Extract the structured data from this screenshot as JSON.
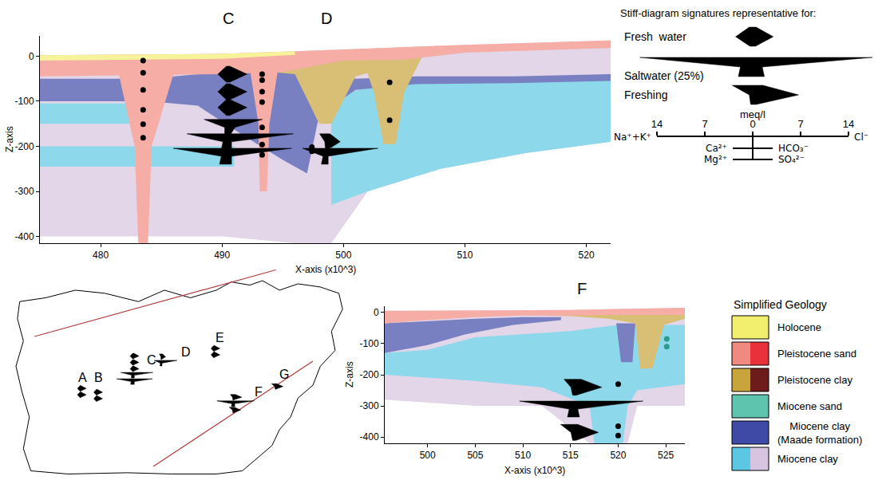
{
  "chart_data": [
    {
      "type": "cross_section",
      "xlabel": "X-axis (x10^3)",
      "ylabel": "Z-axis",
      "xlim": [
        475,
        522
      ],
      "xticks": [
        480,
        490,
        500,
        510,
        520
      ],
      "ylim": [
        -415,
        45
      ],
      "yticks": [
        -400,
        -300,
        -200,
        -100,
        0
      ],
      "labels": [
        {
          "text": "C",
          "x": 490.5
        },
        {
          "text": "D",
          "x": 498.6
        }
      ],
      "layers": [
        {
          "color": "#d8c4e0",
          "x": [
            475,
            490,
            497,
            500,
            510,
            522,
            522,
            515,
            508,
            502,
            499,
            496,
            490,
            475
          ],
          "z": [
            2,
            5,
            12,
            15,
            25,
            35,
            -190,
            -215,
            -250,
            -300,
            -415,
            -415,
            -400,
            -400
          ]
        },
        {
          "color": "#5cc7e3",
          "x": [
            475,
            484,
            484,
            475
          ],
          "z": [
            -105,
            -105,
            -150,
            -150
          ]
        },
        {
          "color": "#5cc7e3",
          "x": [
            475,
            491,
            491,
            475
          ],
          "z": [
            -200,
            -200,
            -245,
            -245
          ]
        },
        {
          "color": "#5cc7e3",
          "x": [
            499,
            502,
            506,
            512,
            518,
            522,
            522,
            515,
            508,
            502,
            499
          ],
          "z": [
            -90,
            -70,
            -55,
            -60,
            -50,
            -45,
            -190,
            -215,
            -250,
            -300,
            -330
          ]
        },
        {
          "color": "#3f4aa6",
          "x": [
            475,
            484,
            488,
            492,
            495,
            498,
            501,
            506,
            514,
            522,
            522,
            514,
            506,
            501,
            498,
            497,
            495,
            492,
            488,
            484,
            475
          ],
          "z": [
            -50,
            -50,
            -40,
            -35,
            -35,
            -45,
            -50,
            -45,
            -45,
            -40,
            -55,
            -60,
            -62,
            -75,
            -130,
            -260,
            -230,
            -180,
            -110,
            -100,
            -100
          ]
        },
        {
          "color": "#c9a43a",
          "x": [
            494,
            497,
            500,
            503,
            503,
            501,
            499,
            498,
            496,
            494
          ],
          "z": [
            -5,
            8,
            10,
            5,
            -30,
            -45,
            -150,
            -150,
            -40,
            -35
          ]
        },
        {
          "color": "#c9a43a",
          "x": [
            501.5,
            506.5,
            506.5,
            505,
            504.3,
            503.3,
            502.5,
            501.5
          ],
          "z": [
            16,
            21,
            0,
            -80,
            -195,
            -195,
            -80,
            0
          ]
        },
        {
          "color": "#f08a80",
          "x": [
            475,
            490,
            497,
            500,
            510,
            522,
            522,
            510,
            505,
            500,
            495,
            490,
            475
          ],
          "z": [
            2,
            5,
            12,
            15,
            25,
            35,
            18,
            8,
            -8,
            -10,
            -35,
            -40,
            -45
          ]
        },
        {
          "color": "#f08a80",
          "x": [
            481.5,
            482.8,
            483.1,
            483.9,
            484.2,
            486
          ],
          "z": [
            -40,
            -200,
            -415,
            -415,
            -200,
            -40
          ]
        },
        {
          "color": "#f08a80",
          "x": [
            492.3,
            493,
            493.1,
            493.7,
            493.9,
            494.6
          ],
          "z": [
            -30,
            -150,
            -300,
            -300,
            -150,
            -30
          ]
        },
        {
          "color": "#f2ee6e",
          "x": [
            475,
            490,
            496,
            496,
            490,
            475
          ],
          "z": [
            2,
            5,
            11,
            3,
            -6,
            -10
          ]
        }
      ],
      "screens": [
        {
          "color": "#000000",
          "x": [
            483.5,
            483.5,
            483.5,
            483.5,
            483.5,
            483.5,
            493.3,
            493.3,
            493.3,
            493.3,
            493.3,
            493.3,
            493.3,
            497.4,
            497.4,
            503.8,
            503.8
          ],
          "z": [
            -10,
            -37,
            -75,
            -119,
            -151,
            -181,
            -40,
            -53,
            -79,
            -102,
            -158,
            -196,
            -219,
            -202,
            -211,
            -58,
            -142
          ]
        }
      ],
      "stiff_diagrams": [
        {
          "x": 490.5,
          "z": -40,
          "cations": [
            0.5,
            3,
            0.5
          ],
          "anions": [
            0.5,
            5.5,
            0.5
          ]
        },
        {
          "x": 490.5,
          "z": -79,
          "cations": [
            0.5,
            3,
            0.5
          ],
          "anions": [
            0.5,
            5.5,
            0.5
          ]
        },
        {
          "x": 490.5,
          "z": -114,
          "cations": [
            0.5,
            3,
            0.5
          ],
          "anions": [
            0.5,
            5.5,
            0.5
          ]
        },
        {
          "x": 490.5,
          "z": -158,
          "cations": [
            7,
            1,
            1
          ],
          "anions": [
            10,
            2,
            0.5
          ]
        },
        {
          "x": 490.5,
          "z": -190,
          "cations": [
            12,
            1.5,
            2
          ],
          "anions": [
            19,
            1,
            1
          ]
        },
        {
          "x": 490.5,
          "z": -222,
          "cations": [
            16,
            2,
            2.5
          ],
          "anions": [
            18.5,
            1,
            1
          ]
        },
        {
          "x": 498.6,
          "z": -190,
          "cations": [
            2,
            0.5,
            0.3
          ],
          "anions": [
            1,
            4,
            0.3
          ]
        },
        {
          "x": 498.6,
          "z": -222,
          "cations": [
            7,
            1,
            1.5
          ],
          "anions": [
            15,
            0.5,
            0.5
          ]
        }
      ]
    },
    {
      "type": "cross_section",
      "xlabel": "X-axis (x10^3)",
      "ylabel": "Z-axis",
      "xlim": [
        495.5,
        527
      ],
      "xticks": [
        500,
        505,
        510,
        515,
        520,
        525
      ],
      "ylim": [
        -420,
        20
      ],
      "yticks": [
        -400,
        -300,
        -200,
        -100,
        0
      ],
      "labels": [
        {
          "text": "F",
          "x": 516.2
        }
      ],
      "layers": [
        {
          "color": "#d8c4e0",
          "x": [
            495.5,
            505,
            515,
            527,
            527,
            522,
            521,
            517,
            512,
            505,
            495.5
          ],
          "z": [
            5,
            6,
            8,
            15,
            -300,
            -300,
            -420,
            -420,
            -300,
            -300,
            -280
          ]
        },
        {
          "color": "#5cc7e3",
          "x": [
            495.5,
            500,
            505,
            510,
            515,
            520,
            527,
            527,
            522,
            521,
            520.5,
            517.5,
            517,
            512,
            505,
            495.5
          ],
          "z": [
            -130,
            -120,
            -80,
            -70,
            -60,
            -40,
            -40,
            -230,
            -250,
            -300,
            -420,
            -420,
            -300,
            -240,
            -220,
            -200
          ]
        },
        {
          "color": "#3f4aa6",
          "x": [
            495.5,
            500,
            505,
            510,
            514,
            514,
            509,
            504,
            500,
            495.5
          ],
          "z": [
            -35,
            -28,
            -20,
            -15,
            -15,
            -25,
            -40,
            -70,
            -105,
            -130
          ]
        },
        {
          "color": "#3f4aa6",
          "x": [
            519.8,
            521.8,
            521.5,
            520.3
          ],
          "z": [
            -35,
            -35,
            -160,
            -160
          ]
        },
        {
          "color": "#c9a43a",
          "x": [
            511,
            515,
            519,
            521.8,
            522.3,
            523.6,
            524.8,
            527,
            527,
            516,
            511
          ],
          "z": [
            -10,
            -12,
            -20,
            -35,
            -180,
            -180,
            -40,
            -20,
            -8,
            -8,
            -10
          ]
        },
        {
          "color": "#f08a80",
          "x": [
            495.5,
            505,
            515,
            527,
            527,
            520,
            515,
            510,
            505,
            500,
            495.5
          ],
          "z": [
            5,
            6,
            8,
            15,
            -8,
            -8,
            -10,
            -10,
            -15,
            -25,
            -35
          ]
        }
      ],
      "screens": [
        {
          "color": "#000000",
          "x": [
            520,
            520,
            520
          ],
          "z": [
            -230,
            -365,
            -395
          ]
        },
        {
          "color": "#2a9d8f",
          "x": [
            525.1,
            525.1
          ],
          "z": [
            -85,
            -110
          ]
        }
      ],
      "stiff_diagrams": [
        {
          "x": 515.4,
          "z": -240,
          "cations": [
            3,
            1,
            0.5
          ],
          "anions": [
            2,
            8,
            0.5
          ]
        },
        {
          "x": 515.4,
          "z": -310,
          "cations": [
            16,
            1.5,
            2
          ],
          "anions": [
            20,
            1,
            1.5
          ]
        },
        {
          "x": 515.4,
          "z": -385,
          "cations": [
            4,
            1,
            0.5
          ],
          "anions": [
            1,
            7,
            0.5
          ]
        }
      ]
    }
  ],
  "stiff_legend": {
    "title": "Stiff-diagram signatures representative for:",
    "signatures": [
      {
        "name": "Fresh  water",
        "cations": [
          0.5,
          2.5,
          0.4
        ],
        "anions": [
          0.5,
          3,
          0.4
        ]
      },
      {
        "name": "Saltwater (25%)",
        "cations": [
          16.5,
          1.8,
          2.1
        ],
        "anions": [
          17.5,
          1.4,
          1.7
        ]
      },
      {
        "name": "Freshing",
        "cations": [
          3,
          0.5,
          0.3
        ],
        "anions": [
          1.5,
          6.7,
          0.5
        ]
      }
    ],
    "unit": "meq/l",
    "xlim": [
      -14,
      14
    ],
    "xticks": [
      {
        "value": -14,
        "label": "14"
      },
      {
        "value": -7,
        "label": "7"
      },
      0,
      7,
      14
    ],
    "cations": [
      "Na⁺+K⁺",
      "Ca²⁺",
      "Mg²⁺"
    ],
    "anions": [
      "Cl⁻",
      "HCO₃⁻",
      "SO₄²⁻"
    ]
  },
  "geology_legend": {
    "title": "Simplified Geology",
    "units": [
      {
        "name": "Holocene",
        "colors": [
          "#f2ee6e"
        ]
      },
      {
        "name": "Pleistocene sand",
        "colors": [
          "#f08a80",
          "#e8313a"
        ]
      },
      {
        "name": "Pleistocene clay",
        "colors": [
          "#c9a43a",
          "#6e1b1b"
        ]
      },
      {
        "name": "Miocene sand",
        "colors": [
          "#5fc4ad"
        ]
      },
      {
        "name": "Miocene clay (Maade formation)",
        "colors": [
          "#3f4aa6"
        ]
      },
      {
        "name": "Miocene clay",
        "colors": [
          "#5cc7e3",
          "#d8c4e0"
        ]
      }
    ]
  },
  "map": {
    "sites": [
      {
        "label": "A",
        "diagrams": [
          {
            "cations": [
              0.5,
              3,
              0.5
            ],
            "anions": [
              0.5,
              5.5,
              0.5
            ]
          },
          {
            "cations": [
              0.5,
              3,
              0.5
            ],
            "anions": [
              0.5,
              5.5,
              0.5
            ]
          }
        ]
      },
      {
        "label": "B",
        "diagrams": [
          {
            "cations": [
              0.5,
              3,
              0.5
            ],
            "anions": [
              0.5,
              5.5,
              0.5
            ]
          },
          {
            "cations": [
              0.5,
              3,
              0.5
            ],
            "anions": [
              0.5,
              5.5,
              0.5
            ]
          }
        ]
      },
      {
        "label": "C",
        "diagrams": [
          {
            "cations": [
              0.5,
              3,
              0.5
            ],
            "anions": [
              0.5,
              5.5,
              0.5
            ]
          },
          {
            "cations": [
              0.5,
              3,
              0.5
            ],
            "anions": [
              0.5,
              5.5,
              0.5
            ]
          },
          {
            "cations": [
              0.5,
              3,
              0.5
            ],
            "anions": [
              0.5,
              5.5,
              0.5
            ]
          },
          {
            "cations": [
              12,
              1.5,
              2
            ],
            "anions": [
              19,
              1,
              1
            ]
          },
          {
            "cations": [
              16,
              2,
              2.5
            ],
            "anions": [
              18.5,
              1,
              1
            ]
          }
        ]
      },
      {
        "label": "D",
        "diagrams": [
          {
            "cations": [
              2,
              0.5,
              0.3
            ],
            "anions": [
              1,
              4,
              0.3
            ]
          },
          {
            "cations": [
              7,
              1,
              1.5
            ],
            "anions": [
              15,
              0.5,
              0.5
            ]
          }
        ]
      },
      {
        "label": "E",
        "diagrams": [
          {
            "cations": [
              0.5,
              3,
              0.5
            ],
            "anions": [
              0.5,
              5.5,
              0.5
            ]
          },
          {
            "cations": [
              0.5,
              3,
              0.5
            ],
            "anions": [
              0.5,
              5.5,
              0.5
            ]
          }
        ]
      },
      {
        "label": "F",
        "diagrams": [
          {
            "cations": [
              3,
              1,
              0.5
            ],
            "anions": [
              2,
              8,
              0.5
            ]
          },
          {
            "cations": [
              16,
              1.5,
              2
            ],
            "anions": [
              20,
              1,
              1.5
            ]
          },
          {
            "cations": [
              4,
              1,
              0.5
            ],
            "anions": [
              1,
              7,
              0.5
            ]
          }
        ]
      },
      {
        "label": "G",
        "diagrams": [
          {
            "cations": [
              4,
              1,
              0.5
            ],
            "anions": [
              1,
              7,
              0.5
            ]
          }
        ]
      }
    ]
  }
}
